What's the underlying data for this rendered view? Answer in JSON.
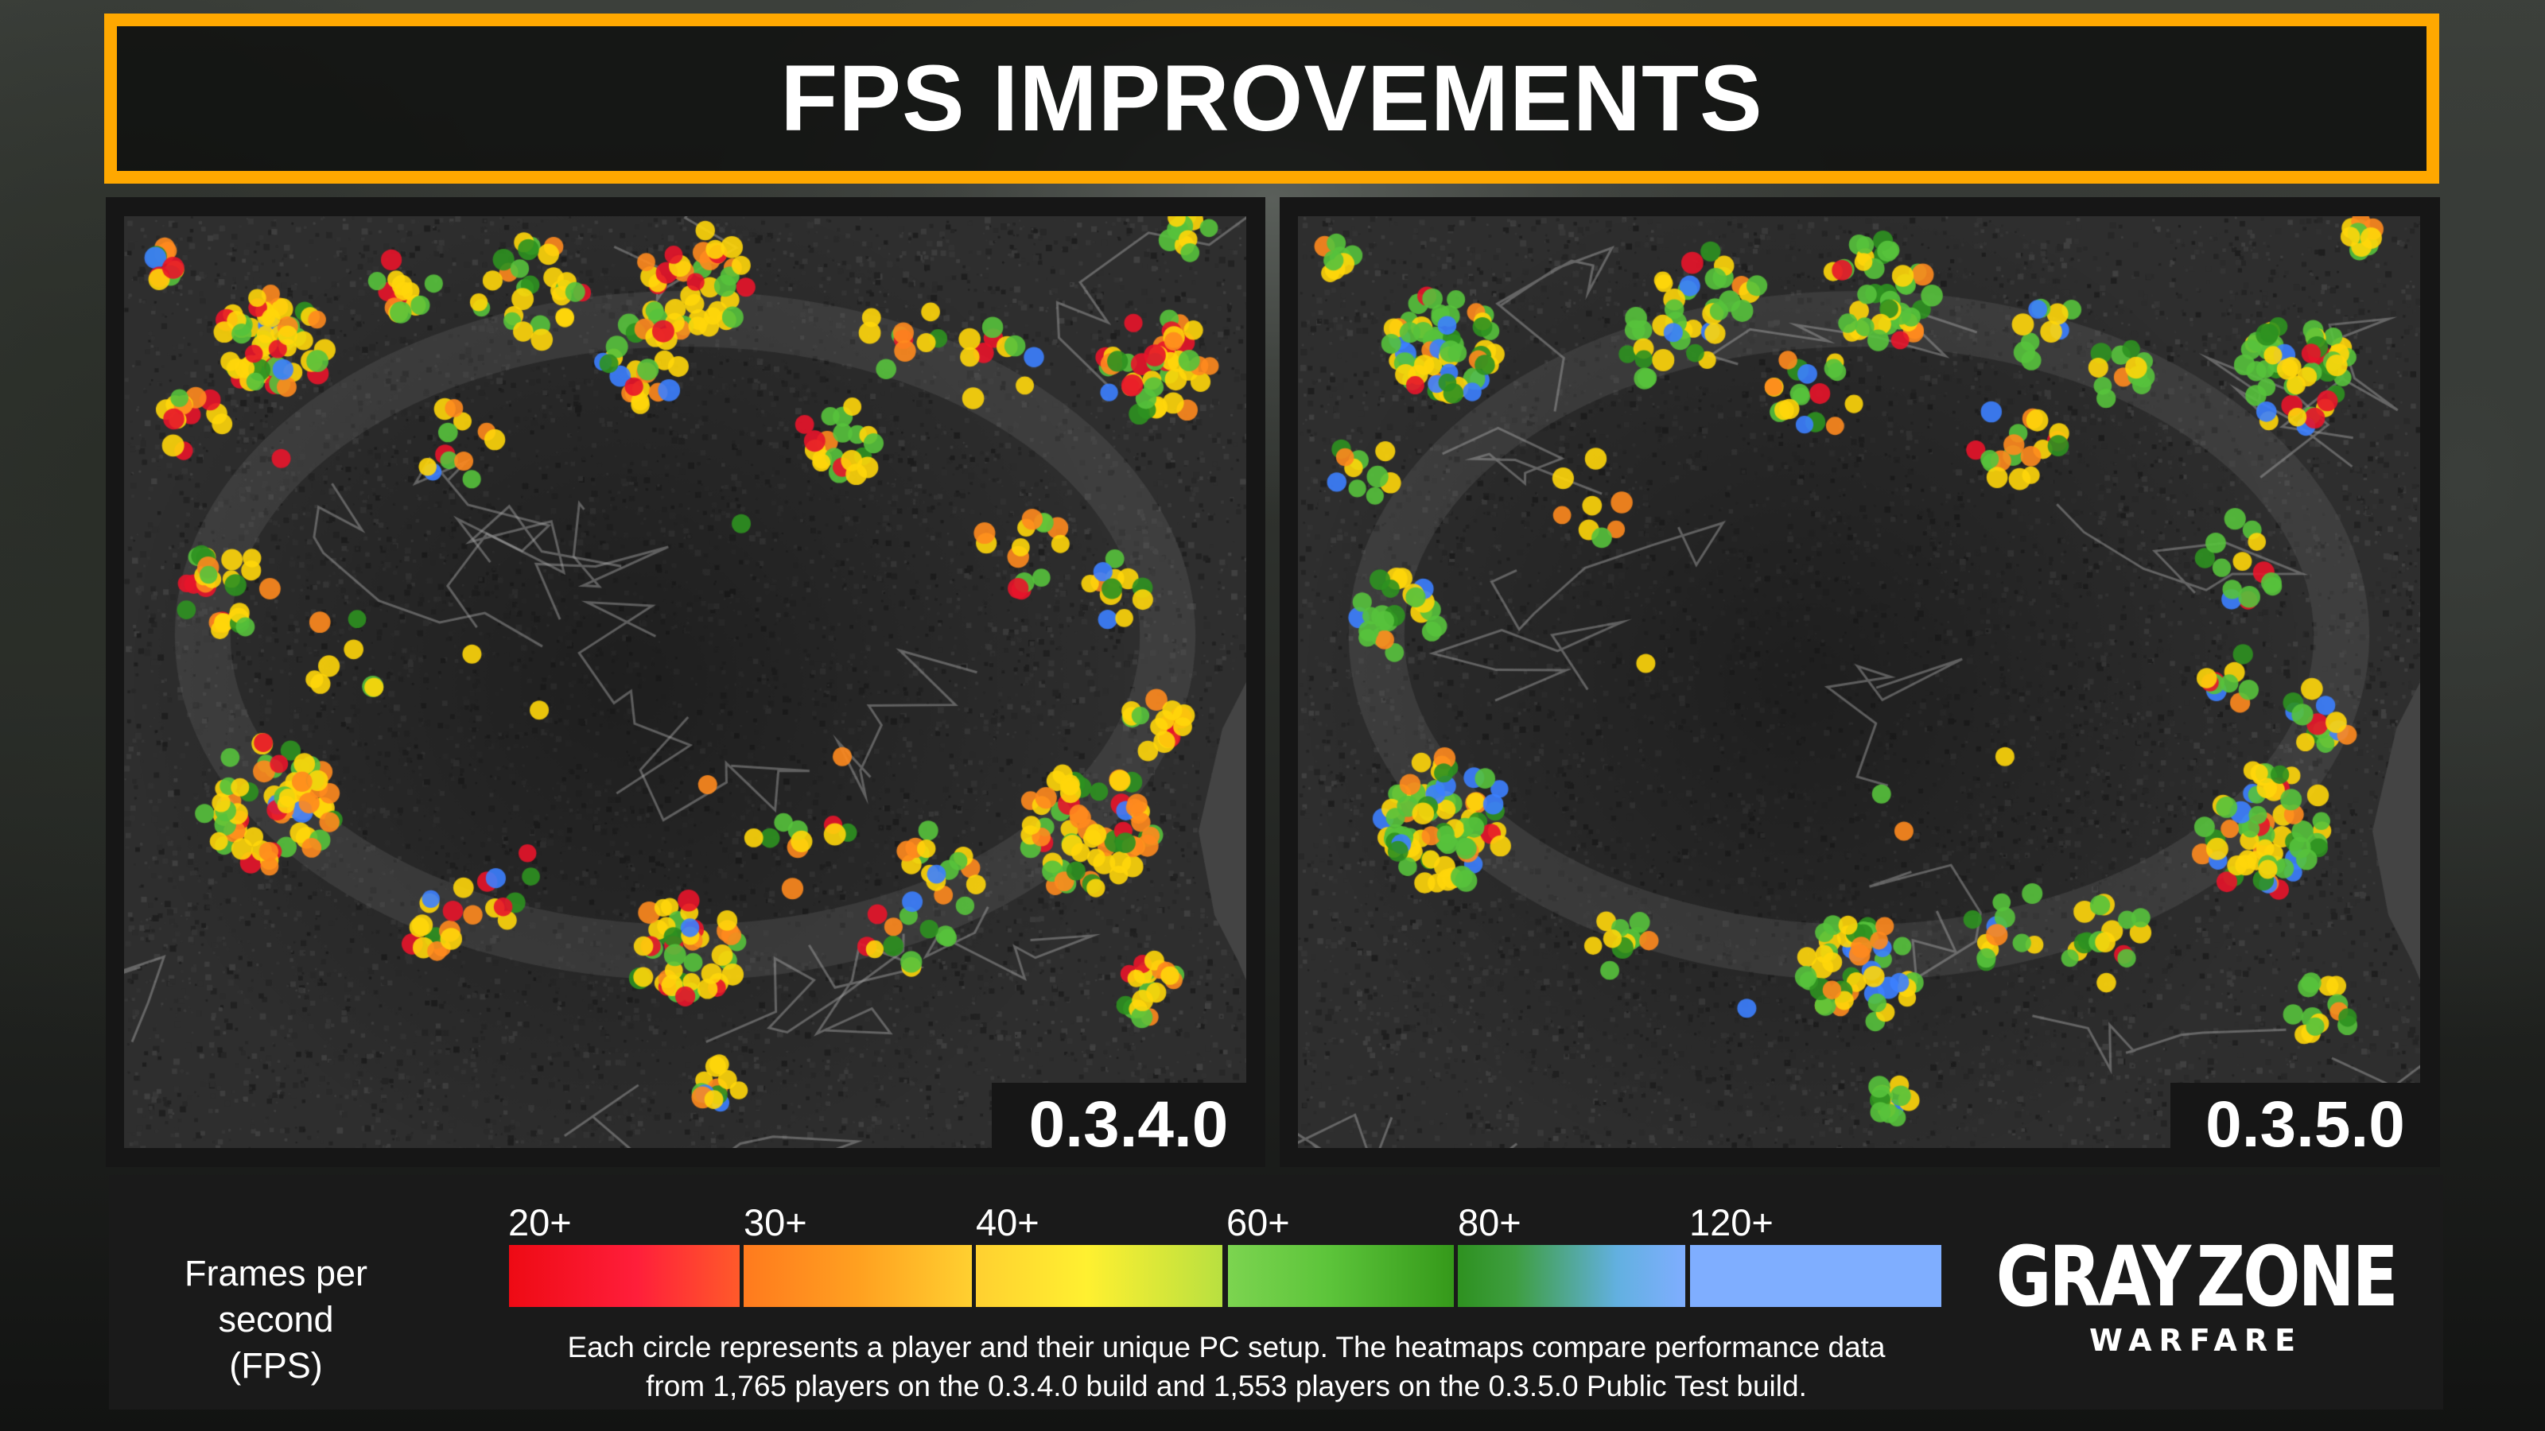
{
  "header": {
    "title": "FPS IMPROVEMENTS",
    "accent_color": "#FFA800"
  },
  "maps": [
    {
      "version": "0.3.4.0",
      "players": "1,765"
    },
    {
      "version": "0.3.5.0",
      "players": "1,553"
    }
  ],
  "legend": {
    "title_line1": "Frames per second",
    "title_line2": "(FPS)",
    "ticks": [
      "20+",
      "30+",
      "40+",
      "60+",
      "80+",
      "120+"
    ],
    "caption_line1": "Each circle represents a player and their unique PC setup. The heatmaps compare performance data",
    "caption_line2": "from 1,765 players on the 0.3.4.0 build and 1,553 players on the 0.3.5.0 Public Test build."
  },
  "logo": {
    "main_left": "GRAY",
    "main_right": "ZONE",
    "sub": "WARFARE"
  },
  "colors": {
    "red": "#E8142A",
    "orange": "#FF8A1E",
    "yellow": "#FFD60A",
    "green": "#56C23C",
    "darkgreen": "#2E9120",
    "blue": "#3C80FF"
  },
  "chart_data": {
    "type": "heatmap",
    "title": "FPS IMPROVEMENTS",
    "legend": {
      "label": "Frames per second (FPS)",
      "bins": [
        "20+",
        "30+",
        "40+",
        "60+",
        "80+",
        "120+"
      ],
      "colors": [
        "#E8142A",
        "#FF8A1E",
        "#FFD60A",
        "#56C23C",
        "#2E9120",
        "#7FAEFF"
      ]
    },
    "series": [
      {
        "name": "0.3.4.0",
        "players": 1765,
        "color_weights": {
          "red": 0.12,
          "orange": 0.16,
          "yellow": 0.42,
          "green": 0.2,
          "darkgreen": 0.08,
          "blue": 0.02
        },
        "clusters": [
          [
            0.13,
            0.14,
            60,
            0.05
          ],
          [
            0.04,
            0.05,
            10,
            0.02
          ],
          [
            0.25,
            0.07,
            14,
            0.03
          ],
          [
            0.36,
            0.08,
            28,
            0.05
          ],
          [
            0.51,
            0.07,
            40,
            0.05
          ],
          [
            0.46,
            0.16,
            24,
            0.04
          ],
          [
            0.64,
            0.24,
            20,
            0.04
          ],
          [
            0.92,
            0.16,
            44,
            0.05
          ],
          [
            0.95,
            0.02,
            10,
            0.02
          ],
          [
            0.78,
            0.16,
            10,
            0.04
          ],
          [
            0.09,
            0.4,
            28,
            0.04
          ],
          [
            0.06,
            0.22,
            14,
            0.03
          ],
          [
            0.13,
            0.63,
            70,
            0.06
          ],
          [
            0.28,
            0.76,
            12,
            0.03
          ],
          [
            0.5,
            0.79,
            46,
            0.05
          ],
          [
            0.53,
            0.93,
            12,
            0.02
          ],
          [
            0.86,
            0.66,
            64,
            0.06
          ],
          [
            0.92,
            0.55,
            16,
            0.03
          ],
          [
            0.91,
            0.83,
            20,
            0.03
          ],
          [
            0.8,
            0.36,
            14,
            0.04
          ],
          [
            0.73,
            0.7,
            16,
            0.04
          ],
          [
            0.7,
            0.78,
            12,
            0.04
          ],
          [
            0.6,
            0.68,
            10,
            0.05
          ],
          [
            0.34,
            0.72,
            10,
            0.04
          ],
          [
            0.2,
            0.47,
            8,
            0.04
          ],
          [
            0.3,
            0.24,
            12,
            0.04
          ],
          [
            0.7,
            0.13,
            10,
            0.04
          ],
          [
            0.88,
            0.4,
            12,
            0.03
          ]
        ],
        "singles": [
          [
            0.31,
            0.47,
            "yellow"
          ],
          [
            0.37,
            0.53,
            "yellow"
          ],
          [
            0.64,
            0.58,
            "orange"
          ],
          [
            0.52,
            0.61,
            "orange"
          ],
          [
            0.55,
            0.33,
            "darkgreen"
          ],
          [
            0.14,
            0.26,
            "red"
          ]
        ]
      },
      {
        "name": "0.3.5.0",
        "players": 1553,
        "color_weights": {
          "red": 0.05,
          "orange": 0.08,
          "yellow": 0.32,
          "green": 0.38,
          "darkgreen": 0.1,
          "blue": 0.07
        },
        "clusters": [
          [
            0.13,
            0.14,
            60,
            0.05
          ],
          [
            0.03,
            0.05,
            8,
            0.02
          ],
          [
            0.36,
            0.08,
            26,
            0.05
          ],
          [
            0.52,
            0.08,
            40,
            0.05
          ],
          [
            0.46,
            0.19,
            18,
            0.04
          ],
          [
            0.64,
            0.24,
            18,
            0.04
          ],
          [
            0.89,
            0.17,
            50,
            0.05
          ],
          [
            0.95,
            0.02,
            10,
            0.02
          ],
          [
            0.75,
            0.17,
            12,
            0.04
          ],
          [
            0.09,
            0.43,
            24,
            0.04
          ],
          [
            0.06,
            0.27,
            10,
            0.03
          ],
          [
            0.13,
            0.65,
            76,
            0.06
          ],
          [
            0.29,
            0.78,
            12,
            0.03
          ],
          [
            0.5,
            0.81,
            50,
            0.05
          ],
          [
            0.53,
            0.95,
            12,
            0.02
          ],
          [
            0.86,
            0.66,
            62,
            0.06
          ],
          [
            0.91,
            0.54,
            14,
            0.03
          ],
          [
            0.91,
            0.85,
            14,
            0.03
          ],
          [
            0.84,
            0.37,
            14,
            0.04
          ],
          [
            0.72,
            0.78,
            16,
            0.04
          ],
          [
            0.63,
            0.76,
            12,
            0.04
          ],
          [
            0.33,
            0.14,
            12,
            0.04
          ],
          [
            0.27,
            0.3,
            8,
            0.04
          ],
          [
            0.66,
            0.13,
            10,
            0.04
          ],
          [
            0.83,
            0.5,
            10,
            0.03
          ]
        ],
        "singles": [
          [
            0.31,
            0.48,
            "yellow"
          ],
          [
            0.63,
            0.58,
            "yellow"
          ],
          [
            0.52,
            0.62,
            "green"
          ],
          [
            0.54,
            0.66,
            "orange"
          ],
          [
            0.4,
            0.85,
            "blue"
          ]
        ]
      }
    ]
  }
}
